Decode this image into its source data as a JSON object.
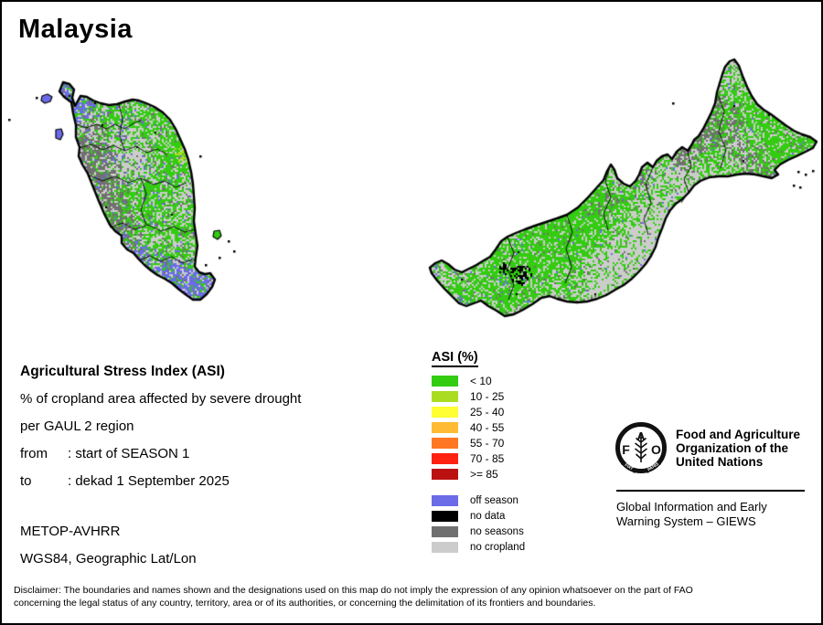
{
  "title": "Malaysia",
  "info": {
    "heading": "Agricultural Stress Index (ASI)",
    "line1": "% of cropland area affected by severe drought",
    "line2": "per GAUL 2 region",
    "from_label": "from",
    "from_value": ": start of SEASON 1",
    "to_label": "to",
    "to_value": ": dekad 1 September 2025",
    "sensor": "METOP-AVHRR",
    "projection": "WGS84, Geographic Lat/Lon"
  },
  "legend": {
    "title": "ASI (%)",
    "classes": [
      {
        "label": "< 10",
        "color": "#33CC11"
      },
      {
        "label": "10 - 25",
        "color": "#AADD22"
      },
      {
        "label": "25 - 40",
        "color": "#FFFF33"
      },
      {
        "label": "40 - 55",
        "color": "#FFBB33"
      },
      {
        "label": "55 - 70",
        "color": "#FF7722"
      },
      {
        "label": "70 - 85",
        "color": "#FF2211"
      },
      {
        "label": ">= 85",
        "color": "#BB1111"
      }
    ],
    "extra_classes": [
      {
        "label": "off season",
        "color": "#6B6BE8"
      },
      {
        "label": "no data",
        "color": "#000000"
      },
      {
        "label": "no seasons",
        "color": "#707070"
      },
      {
        "label": "no cropland",
        "color": "#CCCCCC"
      }
    ]
  },
  "footer": {
    "org_lines": [
      "Food and Agriculture",
      "Organization of the",
      "United Nations"
    ],
    "giews_lines": [
      "Global Information and Early",
      "Warning System – GIEWS"
    ],
    "logo_letters": [
      "F",
      "A",
      "O"
    ],
    "logo_motto": [
      "FIAT",
      "PANIS"
    ]
  },
  "disclaimer": [
    "Disclaimer: The boundaries and names shown and the designations used on this map do not imply the expression of any opinion whatsoever on the part of FAO",
    "concerning the legal status of any country, territory, area or of its authorities, or concerning the delimitation of its frontiers and boundaries."
  ]
}
